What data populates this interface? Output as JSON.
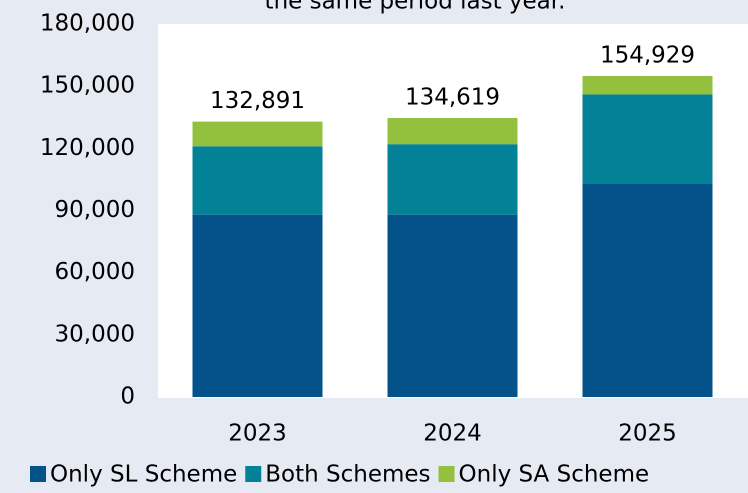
{
  "chart_data": {
    "type": "stacked-bar",
    "title": "the same period last year.",
    "categories": [
      "2023",
      "2024",
      "2025"
    ],
    "series": [
      {
        "name": "Only SL Scheme",
        "color": "#03528a",
        "values": [
          88000,
          88000,
          103000
        ]
      },
      {
        "name": "Both Schemes",
        "color": "#038297",
        "values": [
          33000,
          34000,
          43000
        ]
      },
      {
        "name": "Only SA Scheme",
        "color": "#93c13d",
        "values": [
          11891,
          12619,
          8929
        ]
      }
    ],
    "totals": {
      "values": [
        132891,
        134619,
        154929
      ],
      "value_labels": [
        "132,891",
        "134,619",
        "154,929"
      ]
    },
    "ylim": [
      0,
      180000
    ],
    "yticks": [
      {
        "value": 0,
        "label": "0"
      },
      {
        "value": 30000,
        "label": "30,000"
      },
      {
        "value": 60000,
        "label": "60,000"
      },
      {
        "value": 90000,
        "label": "90,000"
      },
      {
        "value": 120000,
        "label": "120,000"
      },
      {
        "value": 150000,
        "label": "150,000"
      },
      {
        "value": 180000,
        "label": "180,000"
      }
    ],
    "legend": "bottom"
  }
}
